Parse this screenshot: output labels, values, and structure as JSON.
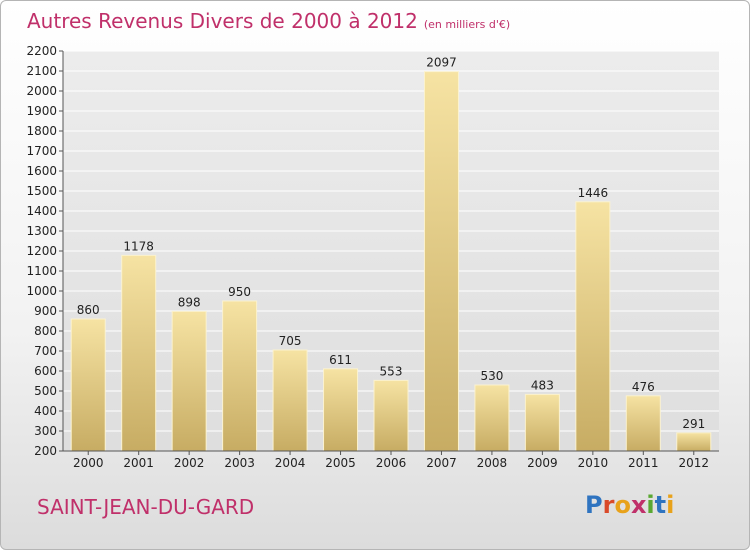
{
  "header": {
    "title": "Autres Revenus Divers de 2000 à 2012",
    "subtitle": "(en milliers d'€)"
  },
  "footer": {
    "city": "SAINT-JEAN-DU-GARD",
    "logo_letters": [
      "P",
      "r",
      "o",
      "x",
      "i",
      "t",
      "i"
    ],
    "logo_colors": [
      "#2f74c0",
      "#d94a2a",
      "#e8a21a",
      "#c0306a",
      "#5aa832",
      "#2f74c0",
      "#e8a21a"
    ]
  },
  "colors": {
    "title": "#c0306a",
    "bar_light": "#f6e3a3",
    "bar_dark": "#c7ac63"
  },
  "chart_data": {
    "type": "bar",
    "categories": [
      "2000",
      "2001",
      "2002",
      "2003",
      "2004",
      "2005",
      "2006",
      "2007",
      "2008",
      "2009",
      "2010",
      "2011",
      "2012"
    ],
    "values": [
      860,
      1178,
      898,
      950,
      705,
      611,
      553,
      2097,
      530,
      483,
      1446,
      476,
      291
    ],
    "title": "Autres Revenus Divers de 2000 à 2012",
    "ylim": [
      200,
      2200
    ],
    "yticks": [
      200,
      300,
      400,
      500,
      600,
      700,
      800,
      900,
      1000,
      1100,
      1200,
      1300,
      1400,
      1500,
      1600,
      1700,
      1800,
      1900,
      2000,
      2100,
      2200
    ],
    "grid": true,
    "legend": "none"
  }
}
